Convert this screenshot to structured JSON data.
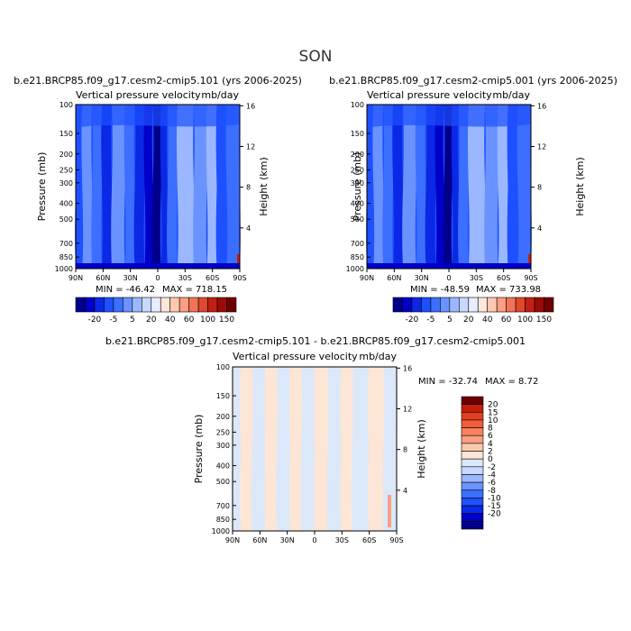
{
  "figure": {
    "season": "SON",
    "colors": {
      "abs": [
        "#00008b",
        "#0000c8",
        "#0a28e6",
        "#1e50ff",
        "#3c6eff",
        "#6a93ff",
        "#9bb7ff",
        "#c8d8ff",
        "#e6eeff",
        "#fde6da",
        "#fcc8ae",
        "#fa9f82",
        "#f27356",
        "#e0482e",
        "#c41f14",
        "#9b0a06",
        "#700000"
      ],
      "diff": [
        "#00008b",
        "#0000c8",
        "#0a28e6",
        "#1e50ff",
        "#3c6eff",
        "#6a93ff",
        "#9bb7ff",
        "#c8d8ff",
        "#dbe8fa",
        "#fde6d6",
        "#fcc8ae",
        "#fa9f82",
        "#f7825e",
        "#f25c3a",
        "#e0401f",
        "#c41f0a",
        "#700000"
      ]
    }
  },
  "chart_data": [
    {
      "type": "heatmap",
      "title": "b.e21.BRCP85.f09_g17.cesm2-cmip5.101 (yrs 2006-2025)",
      "subtitle": "Vertical pressure velocity",
      "units": "mb/day",
      "ylabel": "Pressure (mb)",
      "ylabel_right": "Height (km)",
      "x_ticks": [
        "90N",
        "60N",
        "30N",
        "0",
        "30S",
        "60S",
        "90S"
      ],
      "x_values": [
        90,
        60,
        30,
        0,
        -30,
        -60,
        -90
      ],
      "y_ticks": [
        "100",
        "150",
        "200",
        "250",
        "300",
        "400",
        "500",
        "700",
        "850",
        "1000"
      ],
      "y_values": [
        100,
        150,
        200,
        250,
        300,
        400,
        500,
        700,
        850,
        1000
      ],
      "y_ticks_right": [
        "4",
        "8",
        "12",
        "16"
      ],
      "y_values_right": [
        4,
        8,
        12,
        16
      ],
      "log_pressure_axis": true,
      "min_text": "MIN = -46.42",
      "max_text": "MAX = 718.15",
      "colorbar_labels": [
        "-20",
        "-5",
        "5",
        "20",
        "40",
        "60",
        "100",
        "150"
      ]
    },
    {
      "type": "heatmap",
      "title": "b.e21.BRCP85.f09_g17.cesm2-cmip5.001 (yrs 2006-2025)",
      "subtitle": "Vertical pressure velocity",
      "units": "mb/day",
      "ylabel": "Pressure (mb)",
      "ylabel_right": "Height (km)",
      "x_ticks": [
        "90N",
        "60N",
        "30N",
        "0",
        "30S",
        "60S",
        "90S"
      ],
      "x_values": [
        90,
        60,
        30,
        0,
        -30,
        -60,
        -90
      ],
      "y_ticks": [
        "100",
        "150",
        "200",
        "250",
        "300",
        "400",
        "500",
        "700",
        "850",
        "1000"
      ],
      "y_values": [
        100,
        150,
        200,
        250,
        300,
        400,
        500,
        700,
        850,
        1000
      ],
      "y_ticks_right": [
        "4",
        "8",
        "12",
        "16"
      ],
      "y_values_right": [
        4,
        8,
        12,
        16
      ],
      "log_pressure_axis": true,
      "min_text": "MIN = -48.59",
      "max_text": "MAX = 733.98",
      "colorbar_labels": [
        "-20",
        "-5",
        "5",
        "20",
        "40",
        "60",
        "100",
        "150"
      ]
    },
    {
      "type": "heatmap",
      "title": "b.e21.BRCP85.f09_g17.cesm2-cmip5.101 - b.e21.BRCP85.f09_g17.cesm2-cmip5.001",
      "subtitle": "Vertical pressure velocity",
      "units": "mb/day",
      "ylabel": "Pressure (mb)",
      "ylabel_right": "Height (km)",
      "x_ticks": [
        "90N",
        "60N",
        "30N",
        "0",
        "30S",
        "60S",
        "90S"
      ],
      "x_values": [
        90,
        60,
        30,
        0,
        -30,
        -60,
        -90
      ],
      "y_ticks": [
        "100",
        "150",
        "200",
        "250",
        "300",
        "400",
        "500",
        "700",
        "850",
        "1000"
      ],
      "y_values": [
        100,
        150,
        200,
        250,
        300,
        400,
        500,
        700,
        850,
        1000
      ],
      "y_ticks_right": [
        "4",
        "8",
        "12",
        "16"
      ],
      "y_values_right": [
        4,
        8,
        12,
        16
      ],
      "log_pressure_axis": true,
      "min_text": "MIN = -32.74",
      "max_text": "MAX =   8.72",
      "colorbar_labels": [
        "20",
        "15",
        "10",
        "8",
        "6",
        "4",
        "2",
        "0",
        "-2",
        "-4",
        "-6",
        "-8",
        "-10",
        "-15",
        "-20"
      ]
    }
  ]
}
